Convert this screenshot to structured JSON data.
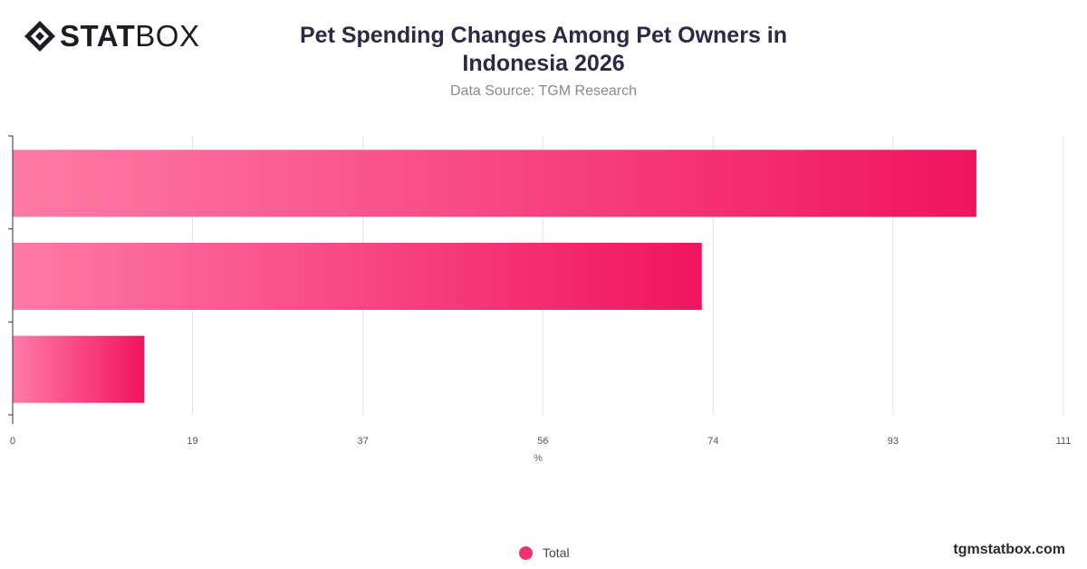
{
  "header": {
    "logo_bold": "STAT",
    "logo_regular": "BOX",
    "logo_icon": "statbox-diamond-icon"
  },
  "footer": {
    "brand": "tgmstatbox.com"
  },
  "colors": {
    "bar_light": "#ff7ba6",
    "bar_dark": "#f0145f",
    "legend": "#f0336f",
    "grid": "#e3e3e3",
    "axis": "#333333"
  },
  "chart_data": {
    "type": "bar",
    "orientation": "horizontal",
    "title": "Pet Spending Changes Among Pet Owners in Indonesia 2026",
    "subtitle": "Data Source: TGM Research",
    "categories": [
      "",
      "",
      ""
    ],
    "series": [
      {
        "name": "Total",
        "values": [
          101.8,
          72.8,
          13.9
        ]
      }
    ],
    "xlabel": "%",
    "xlim": [
      0,
      111
    ],
    "x_ticks": [
      "0",
      "19",
      "37",
      "56",
      "74",
      "93",
      "111"
    ],
    "grid": true,
    "legend": "bottom-center"
  }
}
